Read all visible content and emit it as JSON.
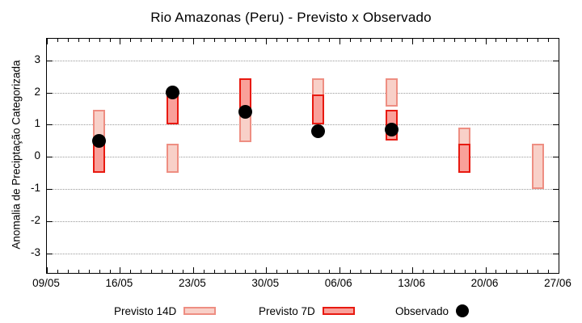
{
  "colors": {
    "background": "#ffffff",
    "axis": "#000000",
    "grid": "#999999",
    "previsto_14d_fill": "#f8d0c8",
    "previsto_14d_border": "#ee8e82",
    "previsto_7d_fill": "#f9a09a",
    "previsto_7d_border": "#e81910",
    "observado": "#000000"
  },
  "chart_data": {
    "type": "bar",
    "subtype": "floating-range-forecast-with-scatter",
    "title": "Rio Amazonas (Peru) - Previsto x Observado",
    "xlabel": "",
    "ylabel": "Anomalia de Preciptação Categorizada",
    "ylim": [
      -3.61,
      3.67
    ],
    "xlim_days": [
      0,
      49
    ],
    "grid": true,
    "legend_position": "below-plot",
    "yticks": [
      3,
      2,
      1,
      0,
      -1,
      -2,
      -3
    ],
    "xticks": [
      {
        "day": 0,
        "label": "09/05"
      },
      {
        "day": 7,
        "label": "16/05"
      },
      {
        "day": 14,
        "label": "23/05"
      },
      {
        "day": 21,
        "label": "30/05"
      },
      {
        "day": 28,
        "label": "06/06"
      },
      {
        "day": 35,
        "label": "13/06"
      },
      {
        "day": 42,
        "label": "20/06"
      },
      {
        "day": 49,
        "label": "27/06"
      }
    ],
    "minor_xtick_every_days": 1,
    "legend_entries": [
      "Previsto 14D",
      "Previsto 7D",
      "Observado"
    ],
    "series": [
      {
        "name": "Previsto 14D",
        "style": "range-bar",
        "points": [
          {
            "date": "14/05",
            "day": 5,
            "low": -0.5,
            "high": 1.45
          },
          {
            "date": "21/05",
            "day": 12,
            "low": -0.5,
            "high": 0.4
          },
          {
            "date": "28/05",
            "day": 19,
            "low": 0.45,
            "high": 2.45
          },
          {
            "date": "04/06",
            "day": 26,
            "low": 1.0,
            "high": 2.45
          },
          {
            "date": "11/06",
            "day": 33,
            "low": 1.55,
            "high": 2.45
          },
          {
            "date": "18/06",
            "day": 40,
            "low": -0.5,
            "high": 0.9
          },
          {
            "date": "25/06",
            "day": 47,
            "low": -1.0,
            "high": 0.4
          }
        ]
      },
      {
        "name": "Previsto 7D",
        "style": "range-bar",
        "points": [
          {
            "date": "14/05",
            "day": 5,
            "low": -0.5,
            "high": 0.55
          },
          {
            "date": "21/05",
            "day": 12,
            "low": 1.0,
            "high": 1.95
          },
          {
            "date": "28/05",
            "day": 19,
            "low": 1.4,
            "high": 2.45
          },
          {
            "date": "04/06",
            "day": 26,
            "low": 1.0,
            "high": 1.95
          },
          {
            "date": "11/06",
            "day": 33,
            "low": 0.5,
            "high": 1.45
          },
          {
            "date": "18/06",
            "day": 40,
            "low": -0.5,
            "high": 0.4
          }
        ]
      },
      {
        "name": "Observado",
        "style": "scatter-dot",
        "points": [
          {
            "date": "14/05",
            "day": 5,
            "value": 0.5
          },
          {
            "date": "21/05",
            "day": 12,
            "value": 2.0
          },
          {
            "date": "28/05",
            "day": 19,
            "value": 1.4
          },
          {
            "date": "04/06",
            "day": 26,
            "value": 0.8
          },
          {
            "date": "11/06",
            "day": 33,
            "value": 0.85
          }
        ]
      }
    ]
  }
}
